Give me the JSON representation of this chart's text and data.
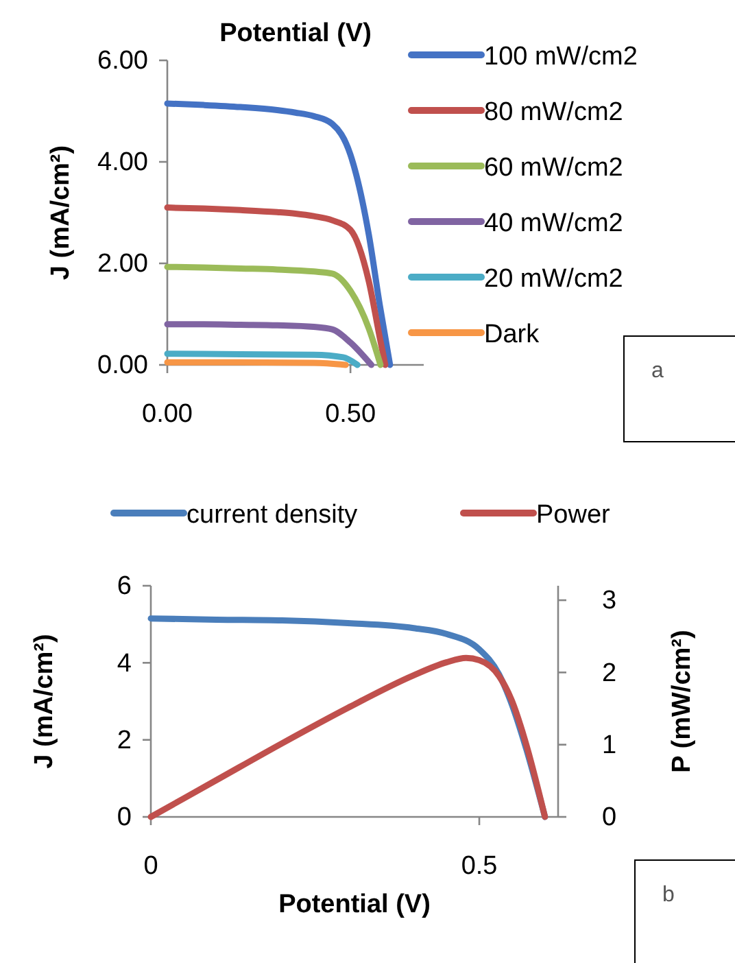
{
  "chart_data": [
    {
      "type": "line",
      "xlabel": "Potential (V)",
      "ylabel": "J (mA/cm²)",
      "xlim": [
        0,
        0.7
      ],
      "xticks": [
        {
          "value": 0,
          "label": "0.00"
        },
        {
          "value": 0.5,
          "label": "0.50"
        }
      ],
      "ylim": [
        0,
        6
      ],
      "yticks": [
        {
          "value": 0,
          "label": "0.00"
        },
        {
          "value": 2,
          "label": "2.00"
        },
        {
          "value": 4,
          "label": "4.00"
        },
        {
          "value": 6,
          "label": "6.00"
        }
      ],
      "legend": "right",
      "grid": false,
      "marker": "none",
      "annotations": [
        "a"
      ],
      "series": [
        {
          "name": "100 mW/cm2",
          "color": "#4472c4",
          "x": [
            0,
            0.1,
            0.2,
            0.3,
            0.35,
            0.4,
            0.45,
            0.5,
            0.55,
            0.58,
            0.608
          ],
          "values": [
            5.15,
            5.12,
            5.08,
            5.02,
            4.97,
            4.9,
            4.75,
            4.14,
            2.57,
            1.18,
            0
          ]
        },
        {
          "name": "80 mW/cm2",
          "color": "#c0504d",
          "x": [
            0,
            0.1,
            0.2,
            0.3,
            0.35,
            0.4,
            0.45,
            0.5,
            0.55,
            0.58,
            0.595
          ],
          "values": [
            3.1,
            3.08,
            3.05,
            3.01,
            2.98,
            2.93,
            2.85,
            2.66,
            1.65,
            0.54,
            0
          ]
        },
        {
          "name": "60 mW/cm2",
          "color": "#9bbb59",
          "x": [
            0,
            0.1,
            0.2,
            0.3,
            0.4,
            0.45,
            0.5,
            0.55,
            0.582
          ],
          "values": [
            1.93,
            1.92,
            1.9,
            1.88,
            1.84,
            1.8,
            1.46,
            0.72,
            0
          ]
        },
        {
          "name": "40 mW/cm2",
          "color": "#8064a2",
          "x": [
            0,
            0.1,
            0.2,
            0.3,
            0.4,
            0.45,
            0.5,
            0.557
          ],
          "values": [
            0.8,
            0.8,
            0.79,
            0.78,
            0.75,
            0.7,
            0.44,
            0
          ]
        },
        {
          "name": "20 mW/cm2",
          "color": "#4bacc6",
          "x": [
            0,
            0.2,
            0.4,
            0.48,
            0.519
          ],
          "values": [
            0.22,
            0.21,
            0.2,
            0.15,
            0
          ]
        },
        {
          "name": "Dark",
          "color": "#f79646",
          "x": [
            0,
            0.2,
            0.4,
            0.487
          ],
          "values": [
            0.05,
            0.05,
            0.04,
            0
          ]
        }
      ]
    },
    {
      "type": "line",
      "xlabel": "Potential (V)",
      "ylabel": "J (mA/cm²)",
      "y2label": "P (mW/cm²)",
      "xlim": [
        0,
        0.62
      ],
      "xticks": [
        0,
        0.5
      ],
      "ylim": [
        0,
        6
      ],
      "yticks": [
        0,
        2,
        4,
        6
      ],
      "y2lim": [
        0,
        3.2
      ],
      "y2ticks": [
        0,
        1,
        2,
        3
      ],
      "legend": "top",
      "grid": false,
      "marker": "none",
      "annotations": [
        "b"
      ],
      "series": [
        {
          "name": "current density",
          "color": "#4a7ebb",
          "x": [
            0,
            0.1,
            0.2,
            0.3,
            0.4,
            0.45,
            0.5,
            0.53,
            0.55,
            0.57,
            0.6
          ],
          "values": [
            5.15,
            5.12,
            5.1,
            5.03,
            4.9,
            4.75,
            4.35,
            3.7,
            2.9,
            1.85,
            0
          ]
        },
        {
          "name": "Power",
          "color": "#c0504d",
          "axis": "y2",
          "x": [
            0,
            0.1,
            0.2,
            0.3,
            0.4,
            0.45,
            0.48,
            0.5,
            0.53,
            0.55,
            0.57,
            0.6
          ],
          "values": [
            0,
            0.51,
            1.02,
            1.51,
            1.96,
            2.14,
            2.2,
            2.17,
            1.95,
            1.6,
            1.05,
            0
          ]
        }
      ]
    }
  ]
}
